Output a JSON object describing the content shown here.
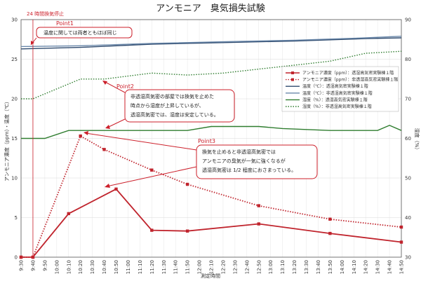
{
  "chart_data": {
    "type": "line",
    "title": "アンモニア　臭気損失試験",
    "xlabel": "測定時間",
    "ylabel_left": "アンモニア濃度（ppm）・温度（℃）",
    "ylabel_right": "湿度（%）",
    "x": [
      "9:30",
      "9:40",
      "9:50",
      "10:00",
      "10:10",
      "10:20",
      "10:30",
      "10:40",
      "10:50",
      "11:00",
      "11:10",
      "11:20",
      "11:30",
      "11:40",
      "11:50",
      "12:00",
      "12:10",
      "12:20",
      "12:30",
      "12:40",
      "12:50",
      "13:00",
      "13:10",
      "13:20",
      "13:30",
      "13:40",
      "13:50",
      "14:00",
      "14:10",
      "14:20",
      "14:30",
      "14:40",
      "14:50"
    ],
    "ylim_left": [
      0,
      30
    ],
    "yticks_left": [
      0,
      5,
      10,
      15,
      20,
      25,
      30
    ],
    "ylim_right": [
      30,
      90
    ],
    "yticks_right": [
      30,
      40,
      50,
      60,
      70,
      80,
      90
    ],
    "grid": true,
    "legend_position": "center-right",
    "series": [
      {
        "name": "アンモニア濃度（ppm）：透湿高気密実験棟１階",
        "axis": "left",
        "style": "solid-square",
        "color": "#c0242d",
        "points": [
          [
            "9:30",
            0
          ],
          [
            "9:40",
            0
          ],
          [
            "10:10",
            5.5
          ],
          [
            "10:50",
            8.6
          ],
          [
            "11:20",
            3.4
          ],
          [
            "11:50",
            3.3
          ],
          [
            "12:50",
            4.2
          ],
          [
            "13:50",
            3.0
          ],
          [
            "14:50",
            1.9
          ]
        ]
      },
      {
        "name": "アンモニア濃度（ppm）：非透湿高気密実験棟１階",
        "axis": "left",
        "style": "dotted-square",
        "color": "#c0242d",
        "points": [
          [
            "9:30",
            0
          ],
          [
            "9:40",
            0
          ],
          [
            "10:20",
            15.3
          ],
          [
            "10:40",
            13.6
          ],
          [
            "11:20",
            11.0
          ],
          [
            "11:50",
            9.2
          ],
          [
            "12:50",
            6.5
          ],
          [
            "13:50",
            4.8
          ],
          [
            "14:50",
            3.8
          ]
        ]
      },
      {
        "name": "温度（℃）：透湿高気密実験棟１階",
        "axis": "left",
        "style": "solid",
        "color": "#2e4a6e",
        "points": [
          [
            "9:30",
            26.3
          ],
          [
            "10:20",
            26.5
          ],
          [
            "11:20",
            26.9
          ],
          [
            "12:20",
            27.1
          ],
          [
            "13:20",
            27.3
          ],
          [
            "14:20",
            27.6
          ],
          [
            "14:50",
            27.7
          ]
        ]
      },
      {
        "name": "温度（℃）：非透湿高気密実験棟１階",
        "axis": "left",
        "style": "solid",
        "color": "#6a88aa",
        "points": [
          [
            "9:30",
            26.6
          ],
          [
            "10:20",
            26.7
          ],
          [
            "11:20",
            27.0
          ],
          [
            "12:20",
            27.2
          ],
          [
            "13:20",
            27.4
          ],
          [
            "14:20",
            27.7
          ],
          [
            "14:50",
            27.9
          ]
        ]
      },
      {
        "name": "湿度（%）：透湿高気密実験棟１階",
        "axis": "right",
        "style": "solid",
        "color": "#2f7d2f",
        "points": [
          [
            "9:30",
            60
          ],
          [
            "9:50",
            60
          ],
          [
            "10:10",
            62
          ],
          [
            "11:00",
            62
          ],
          [
            "11:50",
            62
          ],
          [
            "12:10",
            63
          ],
          [
            "12:50",
            63
          ],
          [
            "13:10",
            62.5
          ],
          [
            "13:50",
            62
          ],
          [
            "14:30",
            62
          ],
          [
            "14:40",
            63.3
          ],
          [
            "14:50",
            62
          ]
        ]
      },
      {
        "name": "湿度（%）：非透湿高気密実験棟１階",
        "axis": "right",
        "style": "dotted",
        "color": "#2f7d2f",
        "points": [
          [
            "9:30",
            70
          ],
          [
            "9:40",
            70
          ],
          [
            "10:00",
            72.5
          ],
          [
            "10:20",
            75
          ],
          [
            "10:40",
            75
          ],
          [
            "11:20",
            76.5
          ],
          [
            "11:50",
            76
          ],
          [
            "12:20",
            76.5
          ],
          [
            "12:50",
            77.5
          ],
          [
            "13:20",
            78.5
          ],
          [
            "13:50",
            79.5
          ],
          [
            "14:20",
            81.5
          ],
          [
            "14:50",
            82
          ]
        ]
      }
    ],
    "annotations": [
      {
        "label": "24 時間換気停止",
        "x": "9:40"
      },
      {
        "label": "Point1",
        "text": [
          "温度に関しては両者ともほぼ同じ"
        ]
      },
      {
        "label": "Point2",
        "text": [
          "非透湿高気密の部屋では換気を止めた",
          "時点から湿度が上昇しているが、",
          "透湿高気密では、湿度は安定している。"
        ]
      },
      {
        "label": "Point3",
        "text": [
          "換気を止めると非透湿高気密では",
          "アンモニアの臭気が一気に強くなるが",
          "透湿高気密は 1/2 程度におさまっている。"
        ]
      }
    ]
  }
}
